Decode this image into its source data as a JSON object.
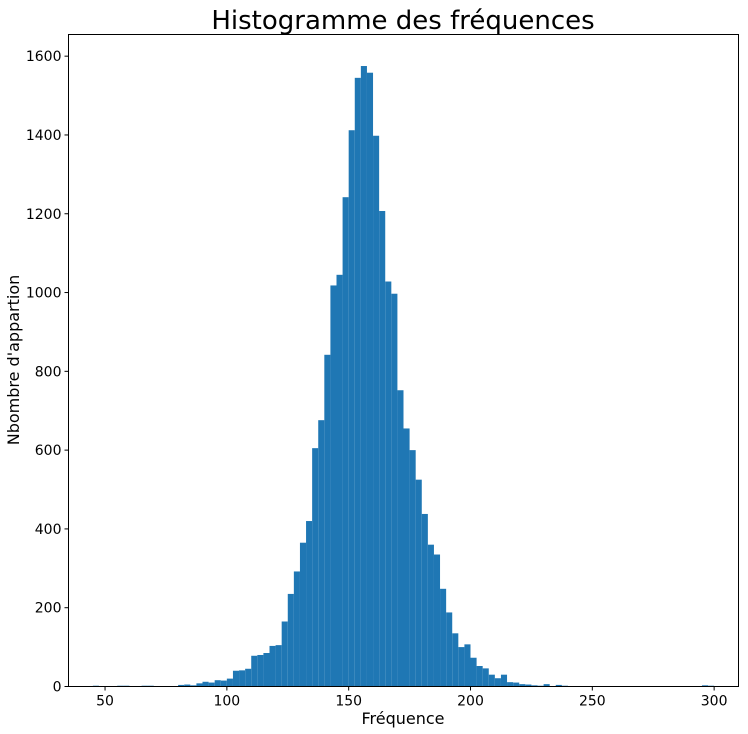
{
  "chart_data": {
    "type": "bar",
    "title": "Histogramme des fréquences",
    "xlabel": "Fréquence",
    "ylabel": "Nbombre d'appartion",
    "xlim": [
      35,
      310
    ],
    "ylim": [
      0,
      1655
    ],
    "xticks": [
      50,
      100,
      150,
      200,
      250,
      300
    ],
    "yticks": [
      0,
      200,
      400,
      600,
      800,
      1000,
      1200,
      1400,
      1600
    ],
    "grid": false,
    "bar_color": "#1f77b4",
    "bin_width": 2.5,
    "bins": [
      {
        "x": 45,
        "count": 2
      },
      {
        "x": 47.5,
        "count": 1
      },
      {
        "x": 52.5,
        "count": 1
      },
      {
        "x": 55,
        "count": 2
      },
      {
        "x": 57.5,
        "count": 2
      },
      {
        "x": 62.5,
        "count": 1
      },
      {
        "x": 65,
        "count": 2
      },
      {
        "x": 67.5,
        "count": 2
      },
      {
        "x": 80,
        "count": 4
      },
      {
        "x": 82.5,
        "count": 5
      },
      {
        "x": 85,
        "count": 3
      },
      {
        "x": 87.5,
        "count": 8
      },
      {
        "x": 90,
        "count": 12
      },
      {
        "x": 92.5,
        "count": 10
      },
      {
        "x": 95,
        "count": 16
      },
      {
        "x": 97.5,
        "count": 15
      },
      {
        "x": 100,
        "count": 20
      },
      {
        "x": 102.5,
        "count": 40
      },
      {
        "x": 105,
        "count": 41
      },
      {
        "x": 107.5,
        "count": 45
      },
      {
        "x": 110,
        "count": 78
      },
      {
        "x": 112.5,
        "count": 80
      },
      {
        "x": 115,
        "count": 85
      },
      {
        "x": 117.5,
        "count": 103
      },
      {
        "x": 120,
        "count": 105
      },
      {
        "x": 122.5,
        "count": 165
      },
      {
        "x": 125,
        "count": 235
      },
      {
        "x": 127.5,
        "count": 292
      },
      {
        "x": 130,
        "count": 365
      },
      {
        "x": 132.5,
        "count": 420
      },
      {
        "x": 135,
        "count": 605
      },
      {
        "x": 137.5,
        "count": 676
      },
      {
        "x": 140,
        "count": 842
      },
      {
        "x": 142.5,
        "count": 1018
      },
      {
        "x": 145,
        "count": 1045
      },
      {
        "x": 147.5,
        "count": 1242
      },
      {
        "x": 150,
        "count": 1412
      },
      {
        "x": 152.5,
        "count": 1545
      },
      {
        "x": 155,
        "count": 1575
      },
      {
        "x": 157.5,
        "count": 1558
      },
      {
        "x": 160,
        "count": 1398
      },
      {
        "x": 162.5,
        "count": 1207
      },
      {
        "x": 165,
        "count": 1028
      },
      {
        "x": 167.5,
        "count": 997
      },
      {
        "x": 170,
        "count": 752
      },
      {
        "x": 172.5,
        "count": 655
      },
      {
        "x": 175,
        "count": 600
      },
      {
        "x": 177.5,
        "count": 525
      },
      {
        "x": 180,
        "count": 438
      },
      {
        "x": 182.5,
        "count": 360
      },
      {
        "x": 185,
        "count": 335
      },
      {
        "x": 187.5,
        "count": 248
      },
      {
        "x": 190,
        "count": 188
      },
      {
        "x": 192.5,
        "count": 135
      },
      {
        "x": 195,
        "count": 100
      },
      {
        "x": 197.5,
        "count": 107
      },
      {
        "x": 200,
        "count": 73
      },
      {
        "x": 202.5,
        "count": 52
      },
      {
        "x": 205,
        "count": 46
      },
      {
        "x": 207.5,
        "count": 30
      },
      {
        "x": 210,
        "count": 21
      },
      {
        "x": 212.5,
        "count": 30
      },
      {
        "x": 215,
        "count": 11
      },
      {
        "x": 217.5,
        "count": 10
      },
      {
        "x": 220,
        "count": 6
      },
      {
        "x": 222.5,
        "count": 5
      },
      {
        "x": 225,
        "count": 3
      },
      {
        "x": 227.5,
        "count": 2
      },
      {
        "x": 230,
        "count": 6
      },
      {
        "x": 232.5,
        "count": 1
      },
      {
        "x": 235,
        "count": 4
      },
      {
        "x": 237.5,
        "count": 2
      },
      {
        "x": 295,
        "count": 3
      },
      {
        "x": 297.5,
        "count": 2
      }
    ]
  }
}
